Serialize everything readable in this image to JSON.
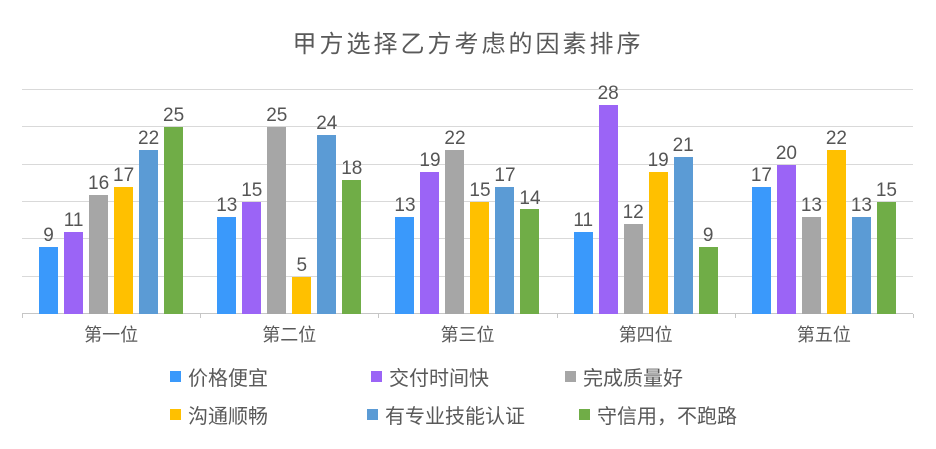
{
  "chart_data": {
    "type": "bar",
    "title": "甲方选择乙方考虑的因素排序",
    "categories": [
      "第一位",
      "第二位",
      "第三位",
      "第四位",
      "第五位"
    ],
    "series": [
      {
        "name": "价格便宜",
        "color": "#3a99fb",
        "values": [
          9,
          13,
          13,
          11,
          17
        ]
      },
      {
        "name": "交付时间快",
        "color": "#9b64f6",
        "values": [
          11,
          15,
          19,
          28,
          20
        ]
      },
      {
        "name": "完成质量好",
        "color": "#a6a6a6",
        "values": [
          16,
          25,
          22,
          12,
          13
        ]
      },
      {
        "name": "沟通顺畅",
        "color": "#ffc000",
        "values": [
          17,
          5,
          15,
          19,
          22
        ]
      },
      {
        "name": "有专业技能认证",
        "color": "#5b9bd5",
        "values": [
          22,
          24,
          17,
          21,
          13
        ]
      },
      {
        "name": "守信用，不跑路",
        "color": "#70ad47",
        "values": [
          25,
          18,
          14,
          9,
          15
        ]
      }
    ],
    "data_labels": true,
    "grid": true,
    "gridline_step": 5,
    "ylim": [
      0,
      30
    ],
    "xlabel": "",
    "ylabel": "",
    "legend_position": "bottom",
    "legend_rows": 2,
    "text_color": "#595959",
    "gridline_color": "#d9d9d9"
  }
}
